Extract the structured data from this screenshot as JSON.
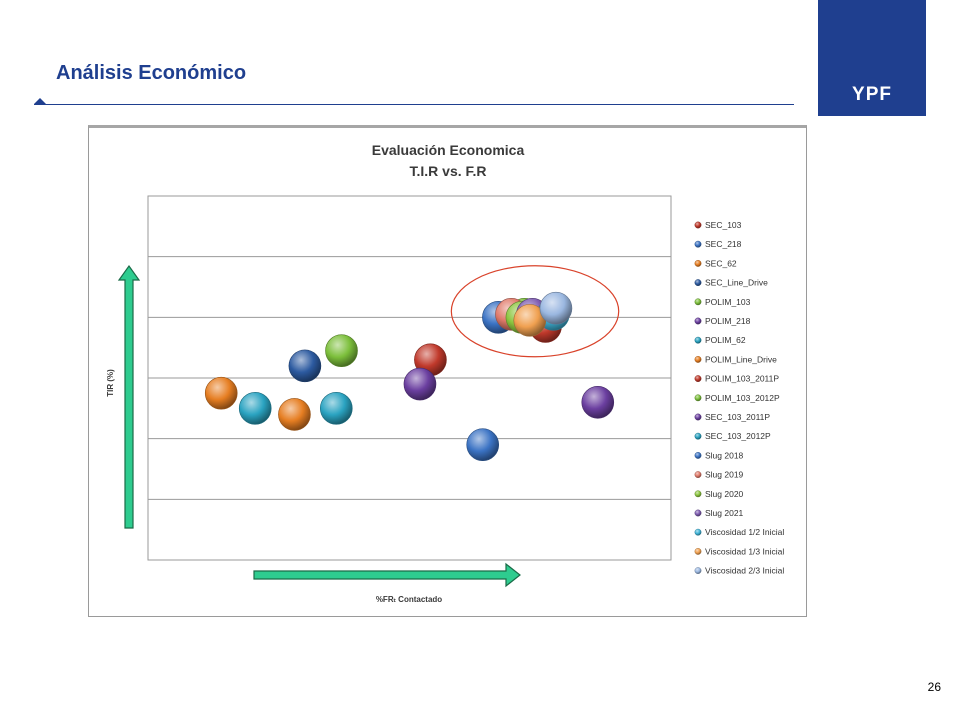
{
  "slide": {
    "title": "Análisis Económico",
    "logo": "YPF",
    "page_number": "26",
    "brand_color": "#1f3f8f"
  },
  "chart_data": {
    "type": "scatter",
    "title": "Evaluación Economica",
    "subtitle": "T.I.R vs. F.R",
    "xlabel": "%FRₜ Contactado",
    "ylabel": "TIR (%)",
    "x_ticks": "none",
    "y_ticks": "none",
    "xlim": [
      0,
      10
    ],
    "ylim": [
      0,
      6
    ],
    "grid": "horizontal",
    "legend_position": "right",
    "highlight": {
      "shape": "ellipse",
      "color": "#d9432b",
      "center": [
        7.4,
        4.1
      ],
      "radii": [
        1.6,
        0.75
      ]
    },
    "series": [
      {
        "name": "SEC_103",
        "color": "#c0392b",
        "points": [
          [
            5.4,
            3.3
          ]
        ]
      },
      {
        "name": "SEC_218",
        "color": "#3b73c4",
        "points": [
          [
            6.4,
            1.9
          ]
        ]
      },
      {
        "name": "SEC_62",
        "color": "#e67e22",
        "points": [
          [
            2.8,
            2.4
          ]
        ]
      },
      {
        "name": "SEC_Line_Drive",
        "color": "#2c5aa0",
        "points": [
          [
            3.0,
            3.2
          ]
        ]
      },
      {
        "name": "POLIM_103",
        "color": "#7cbf3b",
        "points": [
          [
            3.7,
            3.45
          ]
        ]
      },
      {
        "name": "POLIM_218",
        "color": "#6b3fa0",
        "points": [
          [
            8.6,
            2.6
          ]
        ]
      },
      {
        "name": "POLIM_62",
        "color": "#2aa3c1",
        "points": [
          [
            3.6,
            2.5
          ]
        ]
      },
      {
        "name": "POLIM_Line_Drive",
        "color": "#e67e22",
        "points": [
          [
            1.4,
            2.75
          ]
        ]
      },
      {
        "name": "POLIM_103_2011P",
        "color": "#c0392b",
        "points": [
          [
            7.6,
            3.85
          ]
        ]
      },
      {
        "name": "POLIM_103_2012P",
        "color": "#7cbf3b",
        "points": [
          [
            7.2,
            4.05
          ]
        ]
      },
      {
        "name": "SEC_103_2011P",
        "color": "#6b3fa0",
        "points": [
          [
            5.2,
            2.9
          ]
        ]
      },
      {
        "name": "SEC_103_2012P",
        "color": "#2aa3c1",
        "points": [
          [
            2.05,
            2.5
          ]
        ]
      },
      {
        "name": "Slug 2018",
        "color": "#3b73c4",
        "points": [
          [
            6.7,
            4.0
          ]
        ]
      },
      {
        "name": "Slug 2019",
        "color": "#e07a6a",
        "points": [
          [
            6.95,
            4.05
          ]
        ]
      },
      {
        "name": "Slug 2020",
        "color": "#8cc63f",
        "points": [
          [
            7.15,
            4.0
          ]
        ]
      },
      {
        "name": "Slug 2021",
        "color": "#7d5bb0",
        "points": [
          [
            7.35,
            4.05
          ]
        ]
      },
      {
        "name": "Viscosidad 1/2 Inicial",
        "color": "#40b4d8",
        "points": [
          [
            7.75,
            4.05
          ]
        ]
      },
      {
        "name": "Viscosidad 1/3 Inicial",
        "color": "#f0a050",
        "points": [
          [
            7.3,
            3.95
          ]
        ]
      },
      {
        "name": "Viscosidad 2/3 Inicial",
        "color": "#9ab7e0",
        "points": [
          [
            7.8,
            4.15
          ]
        ]
      }
    ]
  }
}
